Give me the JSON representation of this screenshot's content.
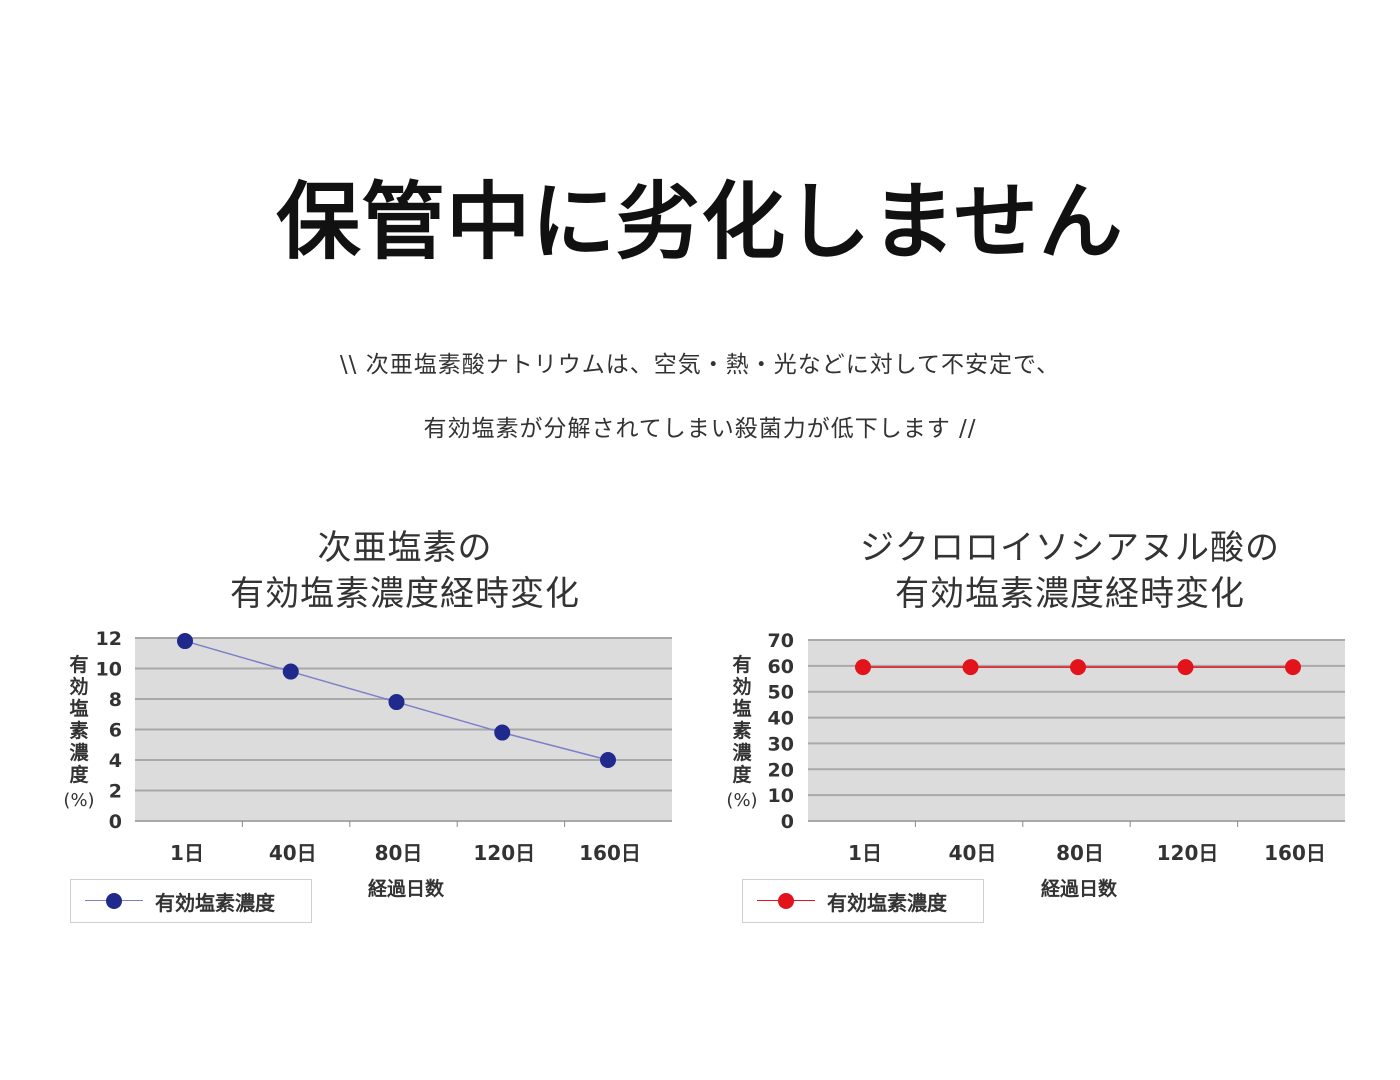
{
  "headline": "保管中に劣化しません",
  "subtext": {
    "line1": "\\\\ 次亜塩素酸ナトリウムは、空気・熱・光などに対して不安定で、",
    "line2": "有効塩素が分解されてしまい殺菌力が低下します //"
  },
  "chart_data": [
    {
      "type": "line",
      "title_lines": [
        "次亜塩素の",
        "有効塩素濃度経時変化"
      ],
      "categories": [
        "1日",
        "40日",
        "80日",
        "120日",
        "160日"
      ],
      "series": [
        {
          "name": "有効塩素濃度",
          "values": [
            11.8,
            9.8,
            7.8,
            5.8,
            4.0
          ],
          "color": "#1f2a8c",
          "line_color": "#7b80c9"
        }
      ],
      "ylim": [
        0,
        12
      ],
      "yticks": [
        0,
        2,
        4,
        6,
        8,
        10,
        12
      ],
      "ylabel_chars": [
        "有",
        "効",
        "塩",
        "素",
        "濃",
        "度"
      ],
      "ylabel_unit": "(%)",
      "xlabel": "経過日数",
      "grid": true,
      "legend_position": "bottom-left"
    },
    {
      "type": "line",
      "title_lines": [
        "ジクロロイソシアヌル酸の",
        "有効塩素濃度経時変化"
      ],
      "categories": [
        "1日",
        "40日",
        "80日",
        "120日",
        "160日"
      ],
      "series": [
        {
          "name": "有効塩素濃度",
          "values": [
            59.5,
            59.5,
            59.5,
            59.5,
            59.5
          ],
          "color": "#e3131b",
          "line_color": "#e3131b"
        }
      ],
      "ylim": [
        0,
        70
      ],
      "yticks": [
        0,
        10,
        20,
        30,
        40,
        50,
        60,
        70
      ],
      "ylabel_chars": [
        "有",
        "効",
        "塩",
        "素",
        "濃",
        "度"
      ],
      "ylabel_unit": "(%)",
      "xlabel": "経過日数",
      "grid": true,
      "legend_position": "bottom-left"
    }
  ]
}
